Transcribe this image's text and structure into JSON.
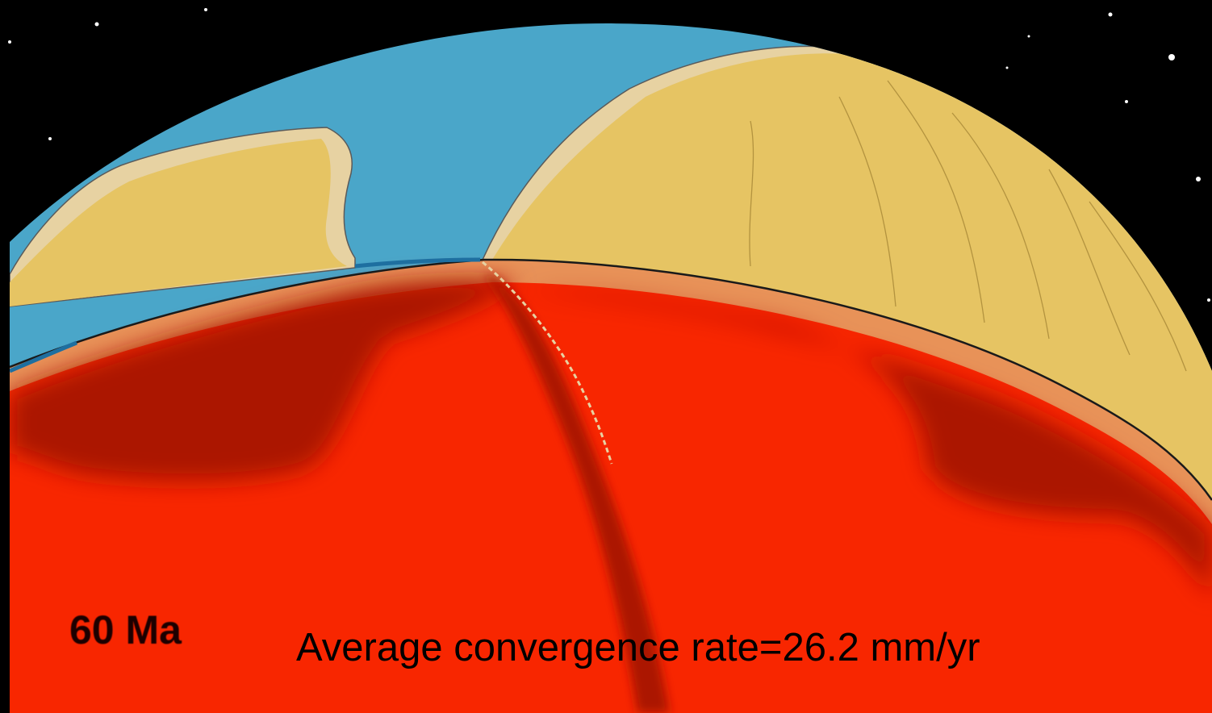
{
  "age_label": "60 Ma",
  "rate_label": "Average convergence rate=26.2 mm/yr",
  "colors": {
    "space": "#000000",
    "ocean": "#4aa6c9",
    "continent": "#e6c463",
    "shelf": "#e7d2a2",
    "crust": "#e89258",
    "mantle_hot": "#f82600",
    "mantle_cold": "#ab1700",
    "outline": "#1a1a1a"
  }
}
